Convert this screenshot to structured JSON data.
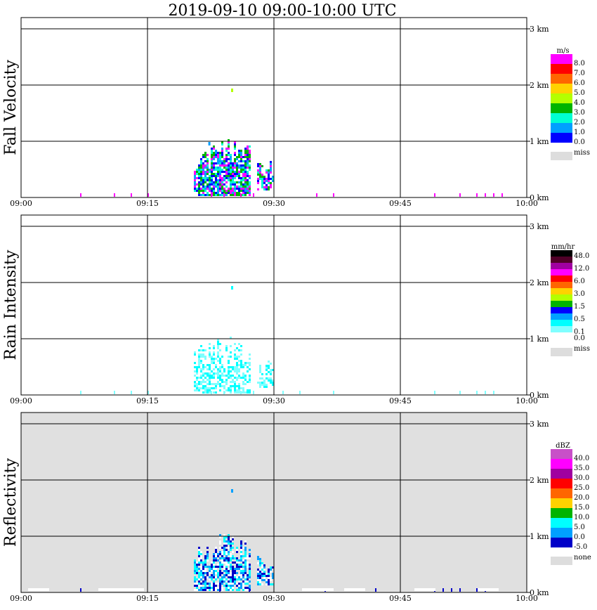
{
  "chart_data": {
    "type": "heatmap",
    "title": "2019-09-10   09:00-10:00 UTC",
    "x_ticks": [
      "09:00",
      "09:15",
      "09:30",
      "09:45",
      "10:00"
    ],
    "x_range_utc": [
      "09:00",
      "10:00"
    ],
    "y_ticks": [
      "0 km",
      "1 km",
      "2 km",
      "3 km"
    ],
    "y_range_km": [
      0,
      3.2
    ],
    "grid": true,
    "legend_placement": "right",
    "panels": [
      {
        "ylabel": "Fall Velocity",
        "unit": "m/s",
        "background": "#ffffff",
        "colorbar": [
          {
            "label": "8.0",
            "color": "#ff00ff"
          },
          {
            "label": "7.0",
            "color": "#ff0000"
          },
          {
            "label": "6.0",
            "color": "#ff6600"
          },
          {
            "label": "5.0",
            "color": "#ffd200"
          },
          {
            "label": "4.0",
            "color": "#b4ff00"
          },
          {
            "label": "3.0",
            "color": "#00b400"
          },
          {
            "label": "2.0",
            "color": "#00ffd2"
          },
          {
            "label": "1.0",
            "color": "#00a0ff"
          },
          {
            "label": "0.0",
            "color": "#0000ff"
          }
        ],
        "miss_label": "miss",
        "echoes": [
          {
            "t": 22.3,
            "z_km": 0.95,
            "color": "#00a0ff"
          },
          {
            "t": 25.0,
            "z_km": 1.9,
            "color": "#b4ff00"
          }
        ],
        "surface_hits": [
          7,
          11,
          13,
          15,
          22.5,
          24,
          26,
          27.5,
          35,
          37,
          49,
          52,
          54,
          55,
          56,
          57
        ]
      },
      {
        "ylabel": "Rain Intensity",
        "unit": "mm/hr",
        "background": "#ffffff",
        "colorbar": [
          {
            "label": "48.0",
            "color": "#000000"
          },
          {
            "label": "",
            "color": "#500028"
          },
          {
            "label": "12.0",
            "color": "#a000a0"
          },
          {
            "label": "",
            "color": "#ff00ff"
          },
          {
            "label": "6.0",
            "color": "#ff0000"
          },
          {
            "label": "",
            "color": "#ff6600"
          },
          {
            "label": "3.0",
            "color": "#ffd200"
          },
          {
            "label": "",
            "color": "#b4ff00"
          },
          {
            "label": "1.5",
            "color": "#00b400"
          },
          {
            "label": "",
            "color": "#0000ff"
          },
          {
            "label": "0.5",
            "color": "#00a0ff"
          },
          {
            "label": "",
            "color": "#00ffff"
          },
          {
            "label": "0.1",
            "color": "#80ffff"
          },
          {
            "label": "0.0",
            "color": "#ffffff"
          }
        ],
        "miss_label": "miss",
        "echoes": [
          {
            "t": 25.0,
            "z_km": 1.9,
            "color": "#00ffff"
          }
        ],
        "surface_hits": [
          7,
          11,
          13,
          15,
          22.5,
          24,
          26,
          27.5,
          31,
          33,
          37,
          49,
          52,
          54,
          55,
          56
        ]
      },
      {
        "ylabel": "Reflectivity",
        "unit": "dBZ",
        "background": "#e0e0e0",
        "colorbar": [
          {
            "label": "40.0",
            "color": "#c850c8"
          },
          {
            "label": "35.0",
            "color": "#ff00ff"
          },
          {
            "label": "30.0",
            "color": "#a000a0"
          },
          {
            "label": "25.0",
            "color": "#ff0000"
          },
          {
            "label": "20.0",
            "color": "#ff6600"
          },
          {
            "label": "15.0",
            "color": "#ffd200"
          },
          {
            "label": "10.0",
            "color": "#00b400"
          },
          {
            "label": "5.0",
            "color": "#00ffff"
          },
          {
            "label": "0.0",
            "color": "#00a0ff"
          },
          {
            "label": "-5.0",
            "color": "#0000c8"
          }
        ],
        "miss_label": "none",
        "echoes": [
          {
            "t": 25.0,
            "z_km": 1.8,
            "color": "#00a0ff"
          }
        ],
        "surface_hits": [
          7,
          23.5,
          27,
          36,
          42,
          49,
          50,
          51,
          52,
          54,
          55
        ]
      }
    ],
    "fill_palettes": {
      "Fall Velocity": [
        "#00ffd2",
        "#00a0ff",
        "#00b400",
        "#0000ff",
        "#ff00ff"
      ],
      "Rain Intensity": [
        "#80ffff",
        "#00ffff",
        "#ffffff"
      ],
      "Reflectivity": [
        "#00a0ff",
        "#00ffff",
        "#0000c8",
        "#ffffff"
      ]
    }
  }
}
